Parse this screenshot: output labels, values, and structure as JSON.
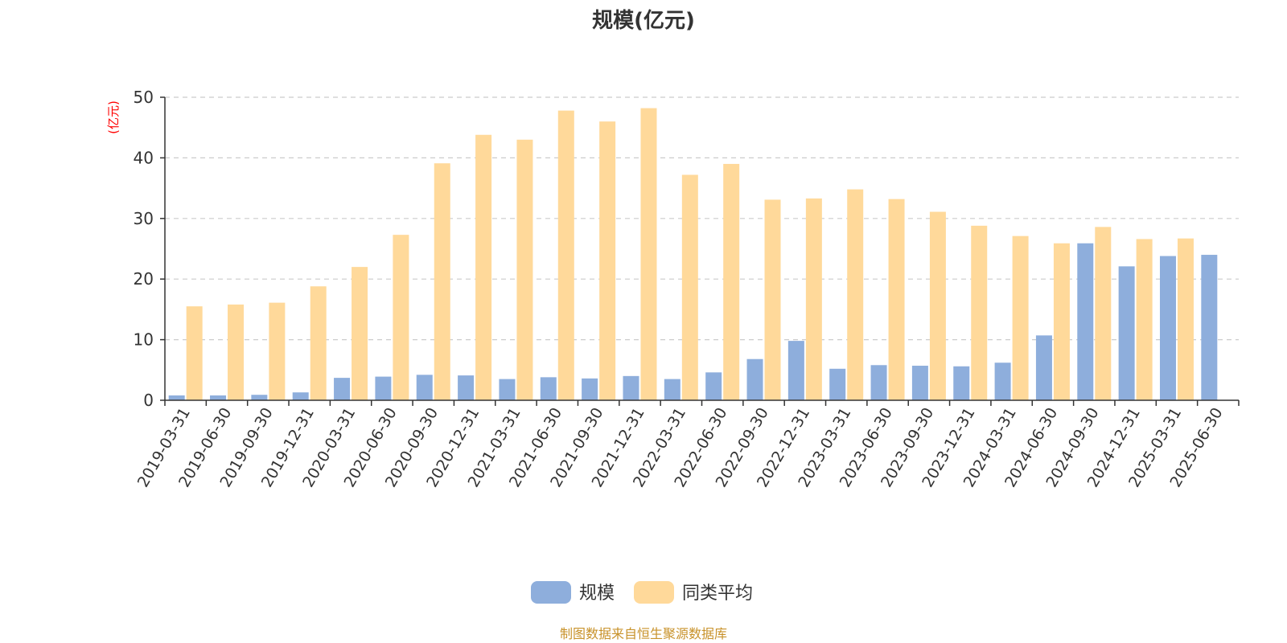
{
  "chart_data": {
    "type": "bar",
    "title": "规模(亿元)",
    "ylabel": "(亿元)",
    "ylim": [
      0,
      50
    ],
    "yticks": [
      0,
      10,
      20,
      30,
      40,
      50
    ],
    "grid": true,
    "legend_position": "bottom",
    "categories": [
      "2019-03-31",
      "2019-06-30",
      "2019-09-30",
      "2019-12-31",
      "2020-03-31",
      "2020-06-30",
      "2020-09-30",
      "2020-12-31",
      "2021-03-31",
      "2021-06-30",
      "2021-09-30",
      "2021-12-31",
      "2022-03-31",
      "2022-06-30",
      "2022-09-30",
      "2022-12-31",
      "2023-03-31",
      "2023-06-30",
      "2023-09-30",
      "2023-12-31",
      "2024-03-31",
      "2024-06-30",
      "2024-09-30",
      "2024-12-31",
      "2025-03-31",
      "2025-06-30"
    ],
    "series": [
      {
        "name": "规模",
        "color": "#8eaedc",
        "values": [
          0.8,
          0.8,
          0.9,
          1.3,
          3.7,
          3.9,
          4.2,
          4.1,
          3.5,
          3.8,
          3.6,
          4.0,
          3.5,
          4.6,
          6.8,
          9.8,
          5.2,
          5.8,
          5.7,
          5.6,
          6.2,
          10.7,
          25.9,
          22.1,
          23.8,
          24.0
        ]
      },
      {
        "name": "同类平均",
        "color": "#ffd99a",
        "values": [
          15.5,
          15.8,
          16.1,
          18.8,
          22.0,
          27.3,
          39.1,
          43.8,
          43.0,
          47.8,
          46.0,
          48.2,
          37.2,
          39.0,
          33.1,
          33.3,
          34.8,
          33.2,
          31.1,
          28.8,
          27.1,
          25.9,
          28.6,
          26.6,
          26.7,
          null
        ]
      }
    ]
  },
  "footer": {
    "source": "制图数据来自恒生聚源数据库"
  }
}
